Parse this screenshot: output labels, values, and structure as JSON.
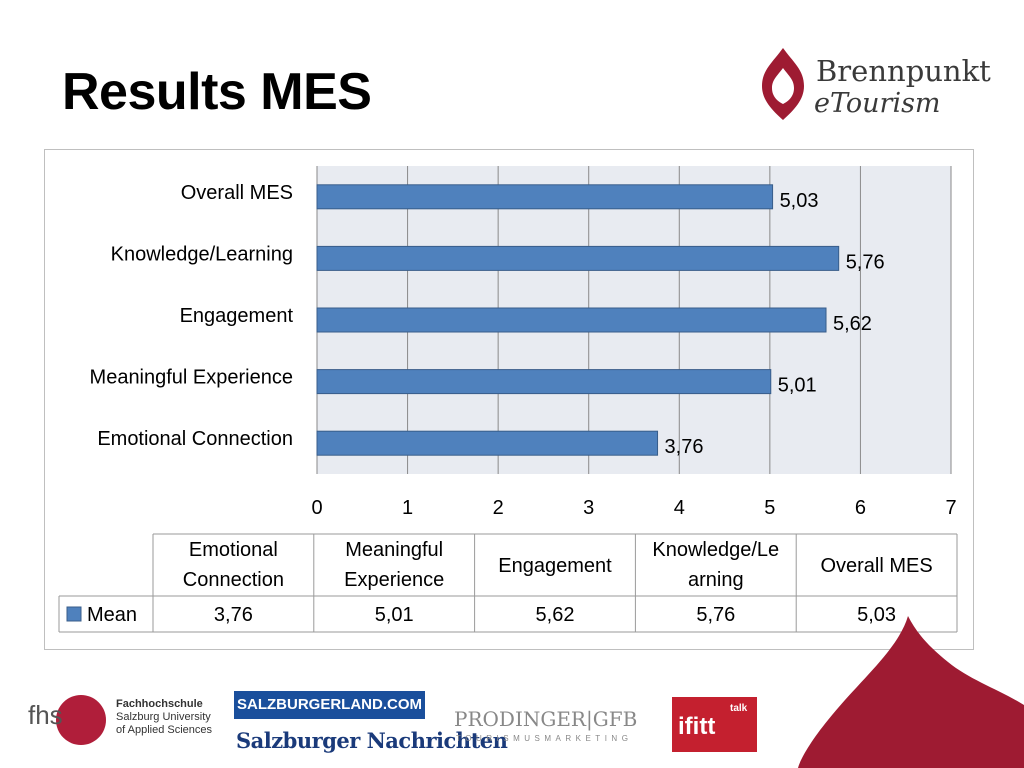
{
  "slide": {
    "title": "Results MES",
    "brand_line1": "Brennpunkt",
    "brand_line2": "eTourism"
  },
  "chart_data": {
    "type": "bar",
    "orientation": "horizontal",
    "categories": [
      "Overall MES",
      "Knowledge/Learning",
      "Engagement",
      "Meaningful Experience",
      "Emotional Connection"
    ],
    "series": [
      {
        "name": "Mean",
        "values": [
          5.03,
          5.76,
          5.62,
          5.01,
          3.76
        ],
        "color": "#4f81bd"
      }
    ],
    "value_labels": [
      "5,03",
      "5,76",
      "5,62",
      "5,01",
      "3,76"
    ],
    "xlim": [
      0,
      7
    ],
    "xticks": [
      "0",
      "1",
      "2",
      "3",
      "4",
      "5",
      "6",
      "7"
    ],
    "grid": true,
    "plot_background": "#e8ebf1",
    "data_table": {
      "headers": [
        [
          "Emotional",
          "Connection"
        ],
        [
          "Meaningful",
          "Experience"
        ],
        [
          "Engagement"
        ],
        [
          "Knowledge/Le",
          "arning"
        ],
        [
          "Overall MES"
        ]
      ],
      "row_label": "Mean",
      "values": [
        "3,76",
        "5,01",
        "5,62",
        "5,76",
        "5,03"
      ]
    }
  },
  "footer": {
    "fhs_logo": "fhs",
    "fhs_desc": [
      "Fachhochschule",
      "Salzburg University",
      "of Applied Sciences"
    ],
    "salzburgerland": "SALZBURGERLAND.COM",
    "salzburger_nachrichten": "Salzburger Nachrichten",
    "prodinger": "PRODINGER|GFB",
    "prodinger_sub": "TOURISMUSMARKETING",
    "ifitt": "ifitt",
    "ifitt_sub": "talk"
  },
  "colors": {
    "accent_red": "#9e1b32",
    "bar_blue": "#4f81bd"
  }
}
